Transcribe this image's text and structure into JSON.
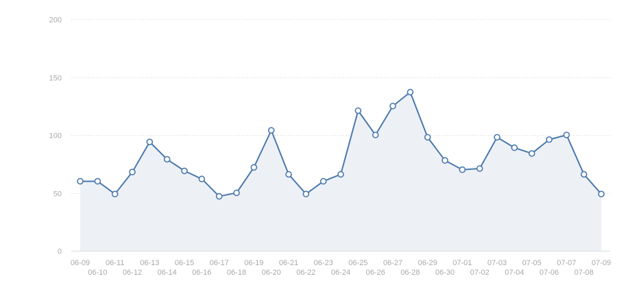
{
  "chart_data": {
    "type": "area",
    "title": "",
    "xlabel": "",
    "ylabel": "",
    "ylim": [
      0,
      200
    ],
    "yticks": [
      0,
      50,
      100,
      150,
      200
    ],
    "grid": true,
    "legend": "none",
    "categories": [
      "06-09",
      "06-10",
      "06-11",
      "06-12",
      "06-13",
      "06-14",
      "06-15",
      "06-16",
      "06-17",
      "06-18",
      "06-19",
      "06-20",
      "06-21",
      "06-22",
      "06-23",
      "06-24",
      "06-25",
      "06-26",
      "06-27",
      "06-28",
      "06-29",
      "06-30",
      "07-01",
      "07-02",
      "07-03",
      "07-04",
      "07-05",
      "07-06",
      "07-07",
      "07-08",
      "07-09"
    ],
    "series": [
      {
        "values": [
          60,
          60,
          49,
          68,
          94,
          79,
          69,
          62,
          47,
          50,
          72,
          104,
          66,
          49,
          60,
          66,
          121,
          100,
          125,
          137,
          98,
          78,
          70,
          71,
          98,
          89,
          84,
          96,
          100,
          66,
          49
        ]
      }
    ],
    "colors": {
      "line": "#4a78ad",
      "area": "#edf1f6",
      "marker_fill": "#ffffff",
      "grid": "#e3e3e3",
      "axis": "#d9d9d9",
      "tick_text": "#a8a8a8"
    }
  }
}
